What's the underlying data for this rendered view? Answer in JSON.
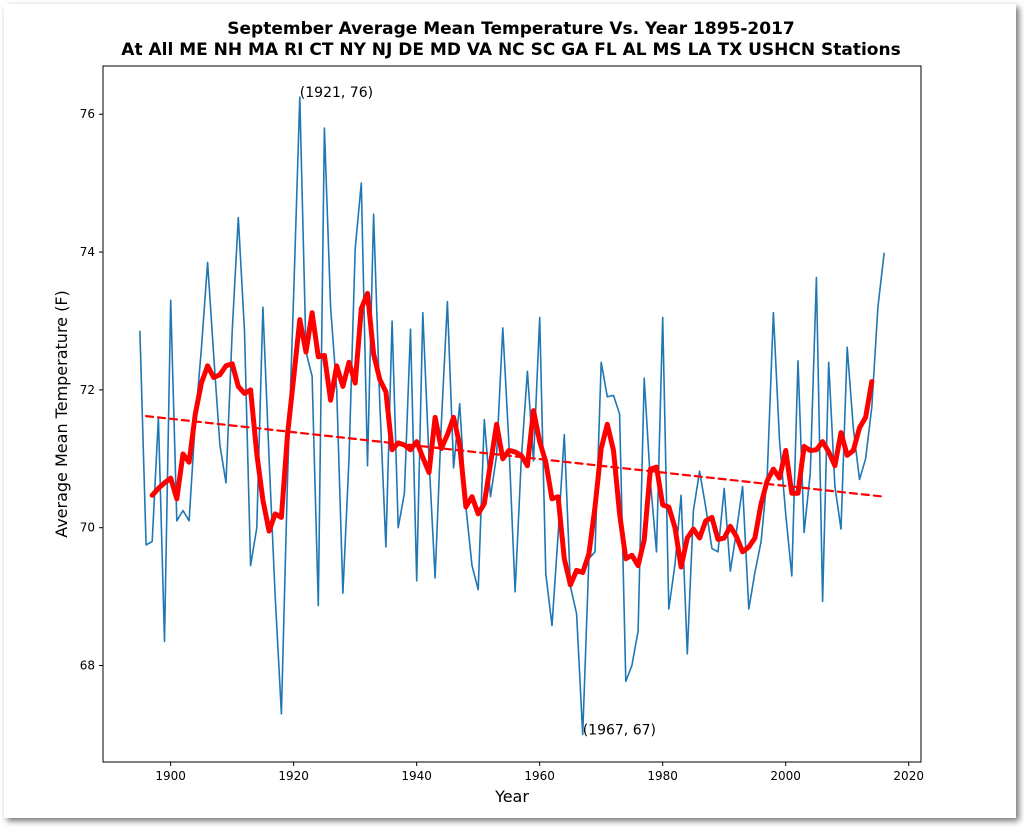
{
  "chart_data": {
    "type": "line",
    "title_line1": "September Average Mean Temperature Vs. Year 1895-2017",
    "title_line2": "At All ME NH MA RI CT NY NJ DE MD VA NC SC GA FL AL MS LA TX USHCN Stations",
    "xlabel": "Year",
    "ylabel": "Average Mean Temperature (F)",
    "xlim": [
      1889,
      2022
    ],
    "ylim": [
      66.6,
      76.7
    ],
    "xticks": [
      1900,
      1920,
      1940,
      1960,
      1980,
      2000,
      2020
    ],
    "yticks": [
      68,
      70,
      72,
      74,
      76
    ],
    "grid": false,
    "colors": {
      "annual": "#1f77b4",
      "smooth": "#ff0000",
      "trend": "#ff0000"
    },
    "series": [
      {
        "x": [
          1895,
          1896,
          1897,
          1898,
          1899,
          1900,
          1901,
          1902,
          1903,
          1904,
          1905,
          1906,
          1907,
          1908,
          1909,
          1910,
          1911,
          1912,
          1913,
          1914,
          1915,
          1916,
          1917,
          1918,
          1919,
          1920,
          1921,
          1922,
          1923,
          1924,
          1925,
          1926,
          1927,
          1928,
          1929,
          1930,
          1931,
          1932,
          1933,
          1934,
          1935,
          1936,
          1937,
          1938,
          1939,
          1940,
          1941,
          1942,
          1943,
          1944,
          1945,
          1946,
          1947,
          1948,
          1949,
          1950,
          1951,
          1952,
          1953,
          1954,
          1955,
          1956,
          1957,
          1958,
          1959,
          1960,
          1961,
          1962,
          1963,
          1964,
          1965,
          1966,
          1967,
          1968,
          1969,
          1970,
          1971,
          1972,
          1973,
          1974,
          1975,
          1976,
          1977,
          1978,
          1979,
          1980,
          1981,
          1982,
          1983,
          1984,
          1985,
          1986,
          1987,
          1988,
          1989,
          1990,
          1991,
          1992,
          1993,
          1994,
          1995,
          1996,
          1997,
          1998,
          1999,
          2000,
          2001,
          2002,
          2003,
          2004,
          2005,
          2006,
          2007,
          2008,
          2009,
          2010,
          2011,
          2012,
          2013,
          2014,
          2015,
          2016
        ],
        "values": [
          72.85,
          69.75,
          69.8,
          71.6,
          68.35,
          73.3,
          70.1,
          70.25,
          70.1,
          71.55,
          72.6,
          73.85,
          72.5,
          71.2,
          70.65,
          72.85,
          74.5,
          72.85,
          69.45,
          70.0,
          73.2,
          71.0,
          69.0,
          67.3,
          70.7,
          73.4,
          76.25,
          72.55,
          72.2,
          68.87,
          75.8,
          73.2,
          72.0,
          69.05,
          71.0,
          74.05,
          75.0,
          70.9,
          74.55,
          71.8,
          69.72,
          73.0,
          70.0,
          70.5,
          72.88,
          69.23,
          73.12,
          71.0,
          69.27,
          71.5,
          73.28,
          70.87,
          71.8,
          70.3,
          69.45,
          69.1,
          71.57,
          70.45,
          71.05,
          72.9,
          71.22,
          69.07,
          70.97,
          72.27,
          70.97,
          73.05,
          69.33,
          68.58,
          69.9,
          71.35,
          69.15,
          68.75,
          67.0,
          69.55,
          69.65,
          72.4,
          71.9,
          71.92,
          71.65,
          67.77,
          68.0,
          68.5,
          72.17,
          70.67,
          69.65,
          73.05,
          68.82,
          69.47,
          70.47,
          68.17,
          70.25,
          70.82,
          70.3,
          69.7,
          69.65,
          70.57,
          69.37,
          69.95,
          70.6,
          68.82,
          69.35,
          69.8,
          70.75,
          73.12,
          71.27,
          70.2,
          69.3,
          72.42,
          69.93,
          70.8,
          73.63,
          68.93,
          72.4,
          70.6,
          69.98,
          72.62,
          71.45,
          70.7,
          71.0,
          71.75,
          73.2,
          73.98
        ]
      },
      {
        "x": [
          1897,
          1898,
          1899,
          1900,
          1901,
          1902,
          1903,
          1904,
          1905,
          1906,
          1907,
          1908,
          1909,
          1910,
          1911,
          1912,
          1913,
          1914,
          1915,
          1916,
          1917,
          1918,
          1919,
          1920,
          1921,
          1922,
          1923,
          1924,
          1925,
          1926,
          1927,
          1928,
          1929,
          1930,
          1931,
          1932,
          1933,
          1934,
          1935,
          1936,
          1937,
          1938,
          1939,
          1940,
          1941,
          1942,
          1943,
          1944,
          1945,
          1946,
          1947,
          1948,
          1949,
          1950,
          1951,
          1952,
          1953,
          1954,
          1955,
          1956,
          1957,
          1958,
          1959,
          1960,
          1961,
          1962,
          1963,
          1964,
          1965,
          1966,
          1967,
          1968,
          1969,
          1970,
          1971,
          1972,
          1973,
          1974,
          1975,
          1976,
          1977,
          1978,
          1979,
          1980,
          1981,
          1982,
          1983,
          1984,
          1985,
          1986,
          1987,
          1988,
          1989,
          1990,
          1991,
          1992,
          1993,
          1994,
          1995,
          1996,
          1997,
          1998,
          1999,
          2000,
          2001,
          2002,
          2003,
          2004,
          2005,
          2006,
          2007,
          2008,
          2009,
          2010,
          2011,
          2012,
          2013,
          2014
        ],
        "values": [
          70.47,
          70.57,
          70.65,
          70.72,
          70.42,
          71.07,
          70.95,
          71.65,
          72.1,
          72.35,
          72.18,
          72.22,
          72.35,
          72.38,
          72.05,
          71.95,
          72.0,
          71.07,
          70.4,
          69.95,
          70.2,
          70.15,
          71.35,
          72.18,
          73.02,
          72.55,
          73.12,
          72.48,
          72.5,
          71.85,
          72.35,
          72.05,
          72.4,
          72.1,
          73.18,
          73.4,
          72.52,
          72.15,
          71.97,
          71.13,
          71.23,
          71.2,
          71.13,
          71.25,
          71.02,
          70.8,
          71.6,
          71.15,
          71.35,
          71.6,
          71.2,
          70.3,
          70.45,
          70.2,
          70.35,
          70.93,
          71.5,
          71.0,
          71.12,
          71.1,
          71.05,
          70.9,
          71.7,
          71.25,
          70.95,
          70.42,
          70.45,
          69.55,
          69.17,
          69.38,
          69.35,
          69.62,
          70.3,
          71.15,
          71.5,
          71.12,
          70.2,
          69.55,
          69.6,
          69.45,
          69.82,
          70.85,
          70.88,
          70.33,
          70.3,
          70.0,
          69.43,
          69.85,
          69.98,
          69.85,
          70.1,
          70.15,
          69.83,
          69.85,
          70.02,
          69.87,
          69.65,
          69.72,
          69.85,
          70.35,
          70.68,
          70.85,
          70.72,
          71.12,
          70.5,
          70.5,
          71.18,
          71.12,
          71.13,
          71.25,
          71.1,
          70.9,
          71.38,
          71.05,
          71.12,
          71.45,
          71.6,
          72.12
        ]
      },
      {
        "x": [
          1896,
          2016
        ],
        "values": [
          71.62,
          70.45
        ]
      }
    ],
    "annotations": [
      {
        "x": 1921,
        "y": 76.25,
        "text": "(1921, 76)"
      },
      {
        "x": 1967,
        "y": 67.0,
        "text": "(1967, 67)"
      }
    ]
  }
}
